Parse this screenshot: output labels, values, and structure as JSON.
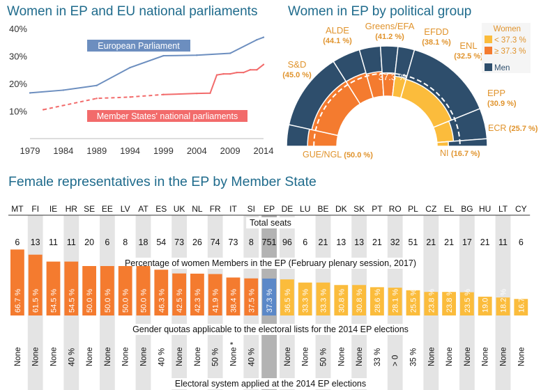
{
  "titles": {
    "line": "Women in EP and EU national parliaments",
    "semi": "Women in EP by political group",
    "table": "Female representatives in the EP by Member State"
  },
  "colors": {
    "ep_line": "#6c8ebf",
    "national_line": "#f26b6b",
    "below": "#fbbc3c",
    "above": "#f47b2f",
    "men": "#2e4e6c",
    "title": "#1f6b8c",
    "group_label": "#e0932c",
    "stripe": "#e4e4e4",
    "ep_col": "#b3b3b3",
    "ep_bar": "#5b88c8"
  },
  "chart_data": [
    {
      "type": "line",
      "title": "Women in EP and EU national parliaments",
      "x_ticks": [
        "1979",
        "1984",
        "1989",
        "1994",
        "1999",
        "2004",
        "2009",
        "2014"
      ],
      "y_ticks": [
        "10%",
        "20%",
        "30%",
        "40%"
      ],
      "ylim": [
        0,
        42
      ],
      "xlim": [
        1979,
        2014
      ],
      "grid": false,
      "series": [
        {
          "name": "European Parliament",
          "style": "solid",
          "x": [
            1979,
            1984,
            1989,
            1994,
            1999,
            2004,
            2009,
            2013,
            2014
          ],
          "y": [
            16.6,
            17.6,
            19.3,
            25.8,
            30.1,
            30.3,
            31.0,
            35.9,
            36.8
          ]
        },
        {
          "name": "Member States' national parliaments",
          "style": "dashed-then-solid",
          "x": [
            1981,
            1989,
            1994,
            1999,
            2004,
            2006,
            2007,
            2008,
            2009,
            2010,
            2011,
            2012,
            2013,
            2014
          ],
          "y": [
            10.5,
            14.6,
            15.1,
            16.0,
            16.4,
            16.5,
            23.1,
            23.5,
            23.5,
            24.0,
            24.0,
            25.0,
            25.0,
            26.9
          ]
        }
      ]
    },
    {
      "type": "pie",
      "title": "Women in EP by political group",
      "legend": {
        "title": "Women",
        "below": "< 37.3 %",
        "above": "≥ 37.3 %",
        "men": "Men"
      },
      "center_label": "37.3 %",
      "groups": [
        {
          "name": "GUE/NGL",
          "value": "(50.0 %)",
          "seats": 52,
          "women_pct": 50.0
        },
        {
          "name": "S&D",
          "value": "(45.0 %)",
          "seats": 189,
          "women_pct": 45.0
        },
        {
          "name": "ALDE",
          "value": "(44.1 %)",
          "seats": 68,
          "women_pct": 44.1
        },
        {
          "name": "Greens/EFA",
          "value": "(41.2 %)",
          "seats": 51,
          "women_pct": 41.2
        },
        {
          "name": "EFDD",
          "value": "(38.1 %)",
          "seats": 42,
          "women_pct": 38.1
        },
        {
          "name": "ENL",
          "value": "(32.5 %)",
          "seats": 40,
          "women_pct": 32.5
        },
        {
          "name": "EPP",
          "value": "(30.9 %)",
          "seats": 217,
          "women_pct": 30.9
        },
        {
          "name": "ECR",
          "value": "(25.7 %)",
          "seats": 74,
          "women_pct": 25.7
        },
        {
          "name": "NI",
          "value": "(16.7 %)",
          "seats": 18,
          "women_pct": 16.7
        }
      ]
    },
    {
      "type": "bar",
      "title": "Female representatives in the EP by Member State",
      "categories": [
        "MT",
        "FI",
        "IE",
        "HR",
        "SE",
        "EE",
        "LV",
        "AT",
        "ES",
        "UK",
        "NL",
        "FR",
        "IT",
        "SI",
        "EP",
        "DE",
        "LU",
        "BE",
        "DK",
        "SK",
        "PT",
        "RO",
        "PL",
        "CZ",
        "EL",
        "BG",
        "HU",
        "LT",
        "CY"
      ],
      "seats_label": "Total seats",
      "seats": [
        "6",
        "13",
        "11",
        "11",
        "20",
        "6",
        "8",
        "18",
        "54",
        "73",
        "26",
        "74",
        "73",
        "8",
        "751",
        "96",
        "6",
        "21",
        "13",
        "13",
        "21",
        "32",
        "51",
        "21",
        "21",
        "17",
        "21",
        "11",
        "6"
      ],
      "pct_label": "Percentage of women Members in the EP (February plenary session, 2017)",
      "values": [
        66.7,
        61.5,
        54.5,
        54.5,
        50.0,
        50.0,
        50.0,
        50.0,
        46.3,
        42.5,
        42.3,
        41.9,
        38.4,
        37.5,
        37.3,
        36.5,
        33.3,
        33.3,
        30.8,
        30.8,
        28.6,
        28.1,
        25.5,
        23.8,
        23.8,
        23.5,
        19.0,
        18.2,
        16.7
      ],
      "value_labels": [
        "66.7 %",
        "61.5 %",
        "54.5 %",
        "54.5 %",
        "50.0 %",
        "50.0 %",
        "50.0 %",
        "50.0 %",
        "46.3 %",
        "42.5 %",
        "42.3 %",
        "41.9 %",
        "38.4 %",
        "37.5 %",
        "37.3 %",
        "36.5 %",
        "33.3 %",
        "33.3 %",
        "30.8 %",
        "30.8 %",
        "28.6 %",
        "28.1 %",
        "25.5 %",
        "23.8 %",
        "23.8 %",
        "23.5 %",
        "19.0 %",
        "18.2 %",
        "16.7 %"
      ],
      "quota_label": "Gender quotas applicable to the electoral lists for the 2014 EP elections",
      "quotas": [
        "None",
        "None",
        "None",
        "40 %",
        "None",
        "None",
        "None",
        "None",
        "40 %",
        "None",
        "None",
        "50 %",
        "None *",
        "40 %",
        "",
        "None",
        "None",
        "50 %",
        "None",
        "None",
        "33 %",
        "> 0",
        "35 %",
        "None",
        "None",
        "None",
        "None",
        "None",
        "None"
      ],
      "electoral_label": "Electoral system applied at the 2014 EP elections"
    }
  ]
}
